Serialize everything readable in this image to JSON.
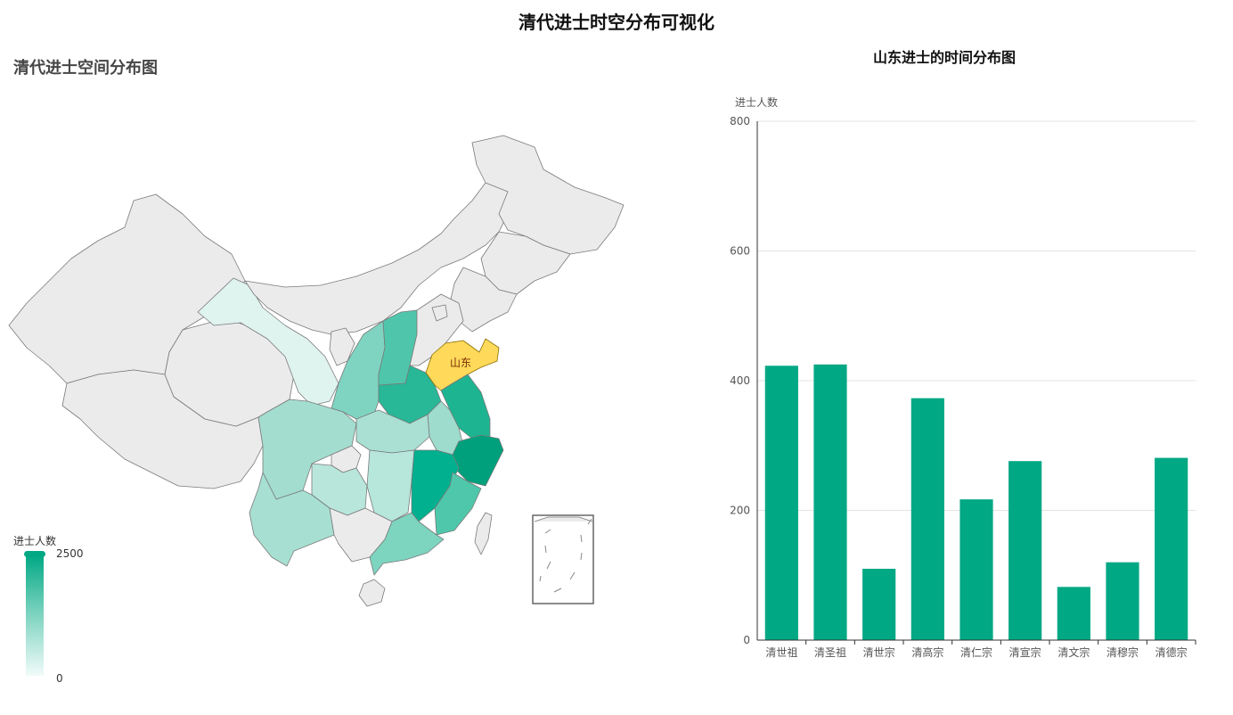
{
  "page": {
    "title": "清代进士时空分布可视化"
  },
  "map": {
    "title": "清代进士空间分布图",
    "highlight_label": "山东",
    "highlight_color": "#ffd95a",
    "base_color": "#ebebeb",
    "border_color": "#7a7a7a"
  },
  "legend": {
    "title": "进士人数",
    "max_label": "2500",
    "min_label": "0",
    "color_max": "#00a884",
    "color_min": "#f1fbf9"
  },
  "chart_data": {
    "type": "bar",
    "title": "山东进士的时间分布图",
    "ylabel": "进士人数",
    "categories": [
      "清世祖",
      "清圣祖",
      "清世宗",
      "清高宗",
      "清仁宗",
      "清宣宗",
      "清文宗",
      "清穆宗",
      "清德宗"
    ],
    "values": [
      423,
      425,
      110,
      373,
      217,
      276,
      82,
      120,
      281
    ],
    "ylim": [
      0,
      800
    ],
    "yticks": [
      0,
      200,
      400,
      600,
      800
    ],
    "bar_color": "#00a884",
    "grid": true
  }
}
